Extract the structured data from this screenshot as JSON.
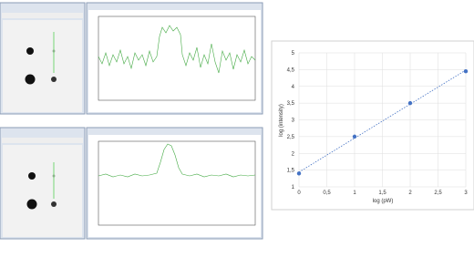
{
  "chart_data": {
    "type": "scatter",
    "x_label": "log (pW)",
    "y_label": "log (intensity)",
    "x": [
      0,
      1,
      2,
      3
    ],
    "series": [
      {
        "color": "#4472c4",
        "values": [
          1.4,
          2.5,
          3.5,
          4.45
        ]
      }
    ],
    "xlim": [
      0,
      3
    ],
    "ylim": [
      1,
      5
    ],
    "xticks": [
      0,
      {
        "value": 0.5,
        "label": "0,5"
      },
      1,
      {
        "value": 1.5,
        "label": "1,5"
      },
      2,
      {
        "value": 2.5,
        "label": "2,5"
      },
      3
    ],
    "yticks": [
      1,
      {
        "value": 1.5,
        "label": "1,5"
      },
      2,
      {
        "value": 2.5,
        "label": "2,5"
      },
      3,
      {
        "value": 3.5,
        "label": "3,5"
      },
      4,
      {
        "value": 4.5,
        "label": "4,5"
      },
      5
    ],
    "grid": true,
    "trendline": true
  }
}
